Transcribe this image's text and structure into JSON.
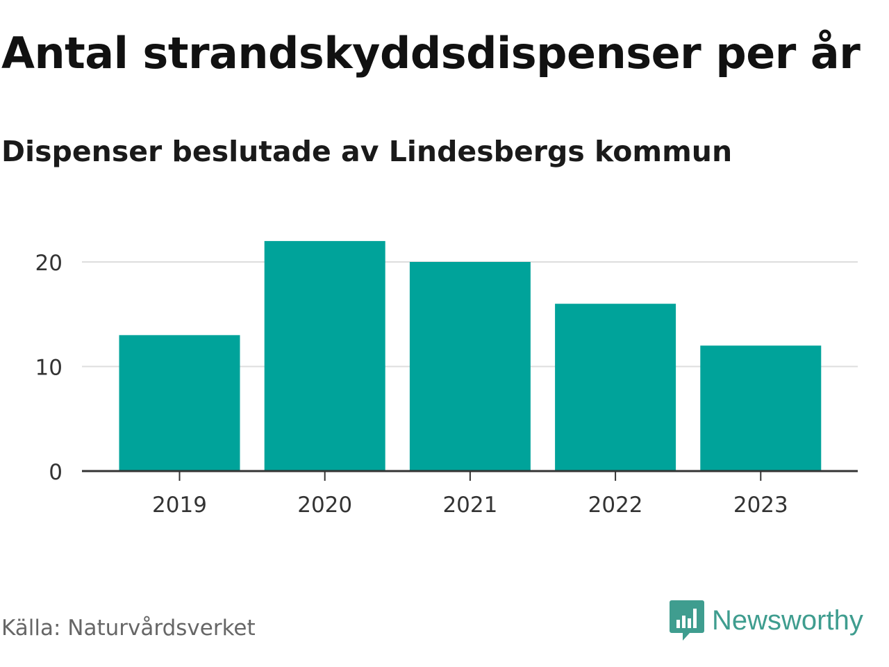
{
  "title": "Antal strandskyddsdispenser per år",
  "subtitle": "Dispenser beslutade av Lindesbergs kommun",
  "source": "Källa: Naturvårdsverket",
  "brand": {
    "name": "Newsworthy",
    "icon": "newsworthy-logo-icon"
  },
  "colors": {
    "bar": "#00a39a",
    "grid": "#dddddd",
    "axis": "#333333",
    "text": "#333333",
    "brand": "#3f9d8f"
  },
  "chart_data": {
    "type": "bar",
    "categories": [
      "2019",
      "2020",
      "2021",
      "2022",
      "2023"
    ],
    "values": [
      13,
      22,
      20,
      16,
      12
    ],
    "title": "Antal strandskyddsdispenser per år",
    "subtitle": "Dispenser beslutade av Lindesbergs kommun",
    "xlabel": "",
    "ylabel": "",
    "ylim": [
      0,
      24
    ],
    "yticks": [
      0,
      10,
      20
    ],
    "grid": true,
    "legend": "none"
  }
}
